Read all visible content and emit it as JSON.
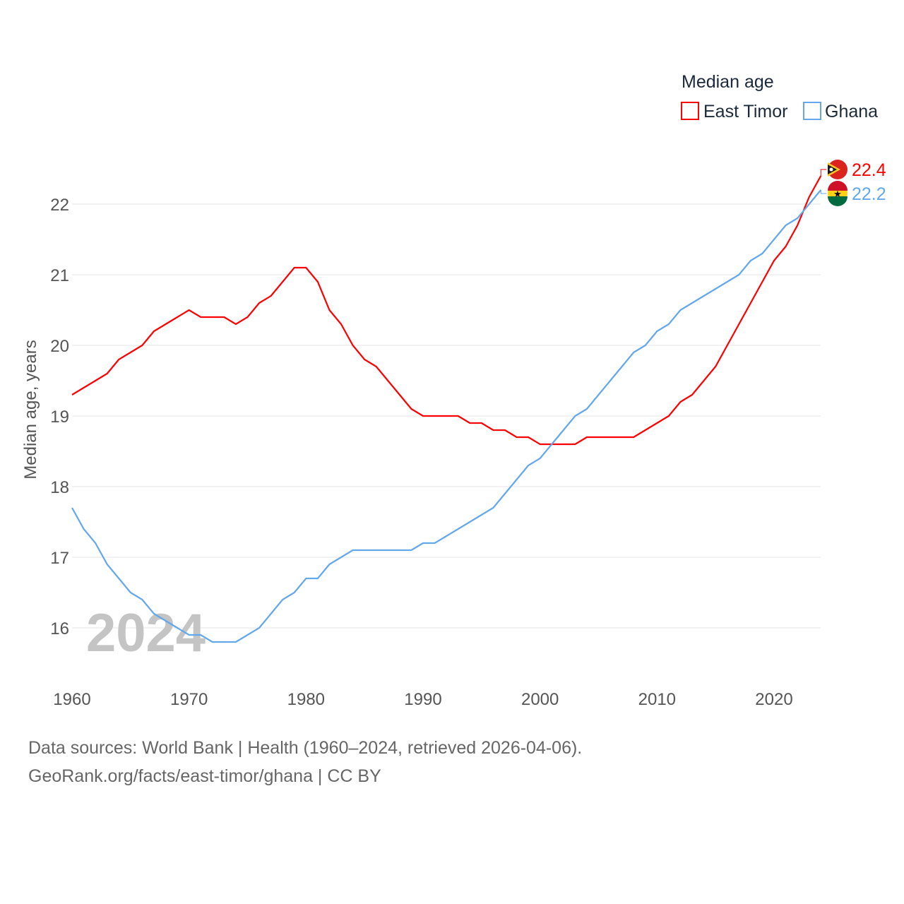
{
  "chart_data": {
    "type": "line",
    "title": "",
    "ylabel": "Median age, years",
    "xlabel": "",
    "xlim": [
      1960,
      2024
    ],
    "ylim": [
      15.4,
      22.6
    ],
    "x_ticks": [
      1960,
      1970,
      1980,
      1990,
      2000,
      2010,
      2020
    ],
    "y_ticks": [
      16,
      17,
      18,
      19,
      20,
      21,
      22
    ],
    "grid": true,
    "legend": {
      "title": "Median age",
      "placement": "top-right"
    },
    "year_watermark": "2024",
    "x": [
      1960,
      1961,
      1962,
      1963,
      1964,
      1965,
      1966,
      1967,
      1968,
      1969,
      1970,
      1971,
      1972,
      1973,
      1974,
      1975,
      1976,
      1977,
      1978,
      1979,
      1980,
      1981,
      1982,
      1983,
      1984,
      1985,
      1986,
      1987,
      1988,
      1989,
      1990,
      1991,
      1992,
      1993,
      1994,
      1995,
      1996,
      1997,
      1998,
      1999,
      2000,
      2001,
      2002,
      2003,
      2004,
      2005,
      2006,
      2007,
      2008,
      2009,
      2010,
      2011,
      2012,
      2013,
      2014,
      2015,
      2016,
      2017,
      2018,
      2019,
      2020,
      2021,
      2022,
      2023,
      2024
    ],
    "series": [
      {
        "name": "East Timor",
        "color": "#ff0000",
        "end_label": "22.4",
        "values": [
          19.3,
          19.4,
          19.5,
          19.6,
          19.8,
          19.9,
          20.0,
          20.2,
          20.3,
          20.4,
          20.5,
          20.4,
          20.4,
          20.4,
          20.3,
          20.4,
          20.6,
          20.7,
          20.9,
          21.1,
          21.1,
          20.9,
          20.5,
          20.3,
          20.0,
          19.8,
          19.7,
          19.5,
          19.3,
          19.1,
          19.0,
          19.0,
          19.0,
          19.0,
          18.9,
          18.9,
          18.8,
          18.8,
          18.7,
          18.7,
          18.6,
          18.6,
          18.6,
          18.6,
          18.7,
          18.7,
          18.7,
          18.7,
          18.7,
          18.8,
          18.9,
          19.0,
          19.2,
          19.3,
          19.5,
          19.7,
          20.0,
          20.3,
          20.6,
          20.9,
          21.2,
          21.4,
          21.7,
          22.1,
          22.4
        ]
      },
      {
        "name": "Ghana",
        "color": "#64a8ec",
        "end_label": "22.2",
        "values": [
          17.7,
          17.4,
          17.2,
          16.9,
          16.7,
          16.5,
          16.4,
          16.2,
          16.1,
          16.0,
          15.9,
          15.9,
          15.8,
          15.8,
          15.8,
          15.9,
          16.0,
          16.2,
          16.4,
          16.5,
          16.7,
          16.7,
          16.9,
          17.0,
          17.1,
          17.1,
          17.1,
          17.1,
          17.1,
          17.1,
          17.2,
          17.2,
          17.3,
          17.4,
          17.5,
          17.6,
          17.7,
          17.9,
          18.1,
          18.3,
          18.4,
          18.6,
          18.8,
          19.0,
          19.1,
          19.3,
          19.5,
          19.7,
          19.9,
          20.0,
          20.2,
          20.3,
          20.5,
          20.6,
          20.7,
          20.8,
          20.9,
          21.0,
          21.2,
          21.3,
          21.5,
          21.7,
          21.8,
          22.0,
          22.2
        ]
      }
    ]
  },
  "footer": {
    "sources": "Data sources: World Bank | Health (1960–2024, retrieved 2026-04-06).",
    "credit": "GeoRank.org/facts/east-timor/ghana | CC BY"
  }
}
